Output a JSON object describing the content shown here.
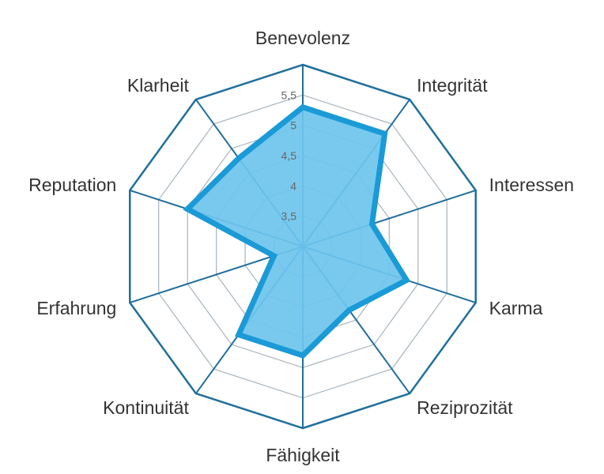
{
  "chart_data": {
    "type": "radar",
    "title": "",
    "categories": [
      "Benevolenz",
      "Integrität",
      "Interessen",
      "Karma",
      "Reziprozität",
      "Fähigkeit",
      "Kontinuität",
      "Erfahrung",
      "Reputation",
      "Klarheit"
    ],
    "series": [
      {
        "values": [
          5.3,
          5.3,
          4.2,
          4.8,
          4.3,
          4.8,
          4.8,
          3.5,
          5.0,
          4.8
        ]
      }
    ],
    "rlim": [
      3.0,
      6.0
    ],
    "ticks": [
      3.5,
      4.0,
      4.5,
      5.0,
      5.5
    ],
    "tick_labels": [
      "3,5",
      "4",
      "4,5",
      "5",
      "5,5"
    ],
    "grid": true,
    "legend": "none",
    "colors": {
      "series_fill": "#6ec4ee",
      "series_stroke": "#1a9ad6",
      "outer_ring": "#1f6f9c",
      "spokes": "#1f6f9c",
      "inner_grid": "#a9b4bd",
      "label_text": "#333333",
      "tick_text": "#666666"
    }
  }
}
